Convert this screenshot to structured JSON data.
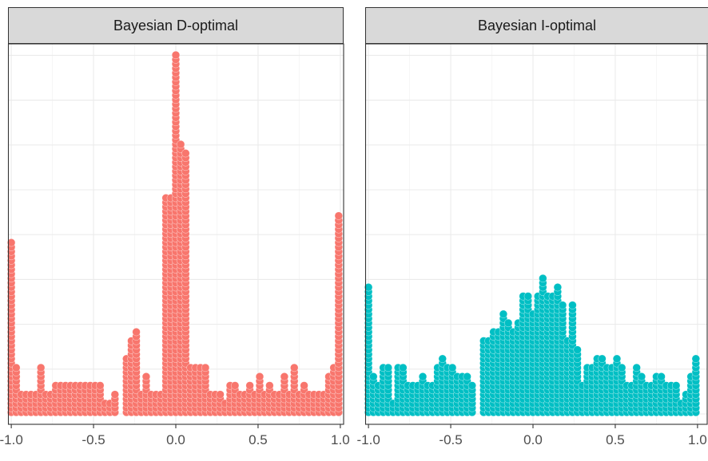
{
  "chart_data": [
    {
      "type": "dotplot",
      "title": "Bayesian D-optimal",
      "xlim": [
        -1.02,
        1.02
      ],
      "xticks": [
        -1.0,
        -0.5,
        0.0,
        0.5,
        1.0
      ],
      "xtick_labels": [
        "-1.0",
        "-0.5",
        "0.0",
        "0.5",
        "1.0"
      ],
      "grid": true,
      "color": "#F8766D",
      "bins": [
        {
          "x": -1.0,
          "count": 39
        },
        {
          "x": -0.97,
          "count": 11
        },
        {
          "x": -0.94,
          "count": 5
        },
        {
          "x": -0.91,
          "count": 5
        },
        {
          "x": -0.88,
          "count": 5
        },
        {
          "x": -0.85,
          "count": 5
        },
        {
          "x": -0.82,
          "count": 11
        },
        {
          "x": -0.79,
          "count": 5
        },
        {
          "x": -0.76,
          "count": 5
        },
        {
          "x": -0.73,
          "count": 7
        },
        {
          "x": -0.7,
          "count": 7
        },
        {
          "x": -0.67,
          "count": 7
        },
        {
          "x": -0.64,
          "count": 7
        },
        {
          "x": -0.61,
          "count": 7
        },
        {
          "x": -0.58,
          "count": 7
        },
        {
          "x": -0.55,
          "count": 7
        },
        {
          "x": -0.52,
          "count": 7
        },
        {
          "x": -0.49,
          "count": 7
        },
        {
          "x": -0.46,
          "count": 7
        },
        {
          "x": -0.43,
          "count": 3
        },
        {
          "x": -0.4,
          "count": 3
        },
        {
          "x": -0.37,
          "count": 5
        },
        {
          "x": -0.3,
          "count": 13
        },
        {
          "x": -0.27,
          "count": 17
        },
        {
          "x": -0.24,
          "count": 19
        },
        {
          "x": -0.21,
          "count": 5
        },
        {
          "x": -0.18,
          "count": 9
        },
        {
          "x": -0.15,
          "count": 5
        },
        {
          "x": -0.12,
          "count": 5
        },
        {
          "x": -0.09,
          "count": 5
        },
        {
          "x": -0.06,
          "count": 49
        },
        {
          "x": -0.03,
          "count": 49
        },
        {
          "x": 0.0,
          "count": 81
        },
        {
          "x": 0.03,
          "count": 61
        },
        {
          "x": 0.06,
          "count": 59
        },
        {
          "x": 0.09,
          "count": 11
        },
        {
          "x": 0.12,
          "count": 11
        },
        {
          "x": 0.15,
          "count": 11
        },
        {
          "x": 0.18,
          "count": 11
        },
        {
          "x": 0.21,
          "count": 5
        },
        {
          "x": 0.24,
          "count": 5
        },
        {
          "x": 0.27,
          "count": 5
        },
        {
          "x": 0.3,
          "count": 3
        },
        {
          "x": 0.33,
          "count": 7
        },
        {
          "x": 0.36,
          "count": 7
        },
        {
          "x": 0.39,
          "count": 5
        },
        {
          "x": 0.42,
          "count": 5
        },
        {
          "x": 0.45,
          "count": 7
        },
        {
          "x": 0.48,
          "count": 5
        },
        {
          "x": 0.51,
          "count": 9
        },
        {
          "x": 0.54,
          "count": 5
        },
        {
          "x": 0.57,
          "count": 7
        },
        {
          "x": 0.6,
          "count": 5
        },
        {
          "x": 0.63,
          "count": 5
        },
        {
          "x": 0.66,
          "count": 9
        },
        {
          "x": 0.69,
          "count": 5
        },
        {
          "x": 0.72,
          "count": 11
        },
        {
          "x": 0.75,
          "count": 5
        },
        {
          "x": 0.78,
          "count": 7
        },
        {
          "x": 0.81,
          "count": 5
        },
        {
          "x": 0.84,
          "count": 5
        },
        {
          "x": 0.87,
          "count": 5
        },
        {
          "x": 0.9,
          "count": 5
        },
        {
          "x": 0.93,
          "count": 9
        },
        {
          "x": 0.96,
          "count": 11
        },
        {
          "x": 0.99,
          "count": 45
        }
      ]
    },
    {
      "type": "dotplot",
      "title": "Bayesian I-optimal",
      "xlim": [
        -1.02,
        1.02
      ],
      "xticks": [
        -1.0,
        -0.5,
        0.0,
        0.5,
        1.0
      ],
      "xtick_labels": [
        "-1.0",
        "-0.5",
        "0.0",
        "0.5",
        "1.0"
      ],
      "grid": true,
      "color": "#00BFC4",
      "bins": [
        {
          "x": -1.0,
          "count": 29
        },
        {
          "x": -0.97,
          "count": 9
        },
        {
          "x": -0.94,
          "count": 7
        },
        {
          "x": -0.91,
          "count": 11
        },
        {
          "x": -0.88,
          "count": 11
        },
        {
          "x": -0.85,
          "count": 3
        },
        {
          "x": -0.82,
          "count": 11
        },
        {
          "x": -0.79,
          "count": 11
        },
        {
          "x": -0.76,
          "count": 7
        },
        {
          "x": -0.73,
          "count": 7
        },
        {
          "x": -0.7,
          "count": 7
        },
        {
          "x": -0.67,
          "count": 9
        },
        {
          "x": -0.64,
          "count": 7
        },
        {
          "x": -0.61,
          "count": 7
        },
        {
          "x": -0.58,
          "count": 11
        },
        {
          "x": -0.55,
          "count": 13
        },
        {
          "x": -0.52,
          "count": 11
        },
        {
          "x": -0.49,
          "count": 11
        },
        {
          "x": -0.46,
          "count": 9
        },
        {
          "x": -0.43,
          "count": 9
        },
        {
          "x": -0.4,
          "count": 9
        },
        {
          "x": -0.37,
          "count": 7
        },
        {
          "x": -0.3,
          "count": 17
        },
        {
          "x": -0.27,
          "count": 17
        },
        {
          "x": -0.24,
          "count": 19
        },
        {
          "x": -0.21,
          "count": 19
        },
        {
          "x": -0.18,
          "count": 23
        },
        {
          "x": -0.15,
          "count": 21
        },
        {
          "x": -0.12,
          "count": 19
        },
        {
          "x": -0.09,
          "count": 21
        },
        {
          "x": -0.06,
          "count": 27
        },
        {
          "x": -0.03,
          "count": 27
        },
        {
          "x": 0.0,
          "count": 23
        },
        {
          "x": 0.03,
          "count": 27
        },
        {
          "x": 0.06,
          "count": 31
        },
        {
          "x": 0.09,
          "count": 27
        },
        {
          "x": 0.12,
          "count": 27
        },
        {
          "x": 0.15,
          "count": 29
        },
        {
          "x": 0.18,
          "count": 25
        },
        {
          "x": 0.21,
          "count": 17
        },
        {
          "x": 0.24,
          "count": 25
        },
        {
          "x": 0.27,
          "count": 15
        },
        {
          "x": 0.3,
          "count": 7
        },
        {
          "x": 0.33,
          "count": 11
        },
        {
          "x": 0.36,
          "count": 11
        },
        {
          "x": 0.39,
          "count": 13
        },
        {
          "x": 0.42,
          "count": 13
        },
        {
          "x": 0.45,
          "count": 11
        },
        {
          "x": 0.48,
          "count": 11
        },
        {
          "x": 0.51,
          "count": 13
        },
        {
          "x": 0.54,
          "count": 11
        },
        {
          "x": 0.57,
          "count": 7
        },
        {
          "x": 0.6,
          "count": 7
        },
        {
          "x": 0.63,
          "count": 11
        },
        {
          "x": 0.66,
          "count": 9
        },
        {
          "x": 0.69,
          "count": 7
        },
        {
          "x": 0.72,
          "count": 7
        },
        {
          "x": 0.75,
          "count": 9
        },
        {
          "x": 0.78,
          "count": 9
        },
        {
          "x": 0.81,
          "count": 7
        },
        {
          "x": 0.84,
          "count": 7
        },
        {
          "x": 0.87,
          "count": 7
        },
        {
          "x": 0.9,
          "count": 3
        },
        {
          "x": 0.93,
          "count": 5
        },
        {
          "x": 0.96,
          "count": 9
        },
        {
          "x": 0.99,
          "count": 13
        }
      ]
    }
  ]
}
